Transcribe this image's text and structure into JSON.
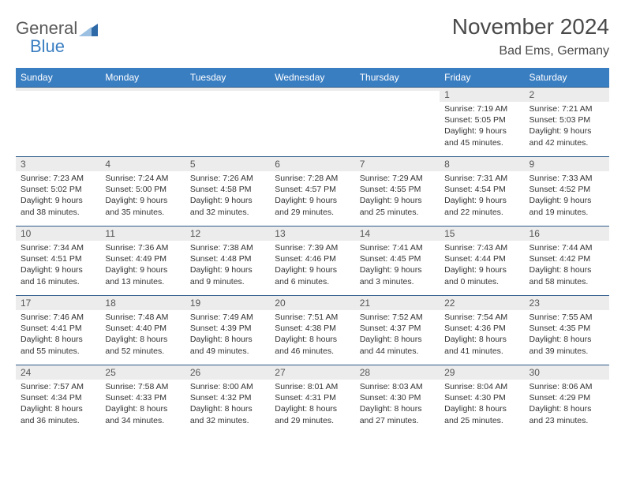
{
  "logo": {
    "word1": "General",
    "word2": "Blue",
    "tri_color": "#2f6aa8"
  },
  "header": {
    "month_title": "November 2024",
    "location": "Bad Ems, Germany"
  },
  "colors": {
    "header_bg": "#3a7ec2",
    "header_text": "#ffffff",
    "daynum_bg": "#ececec",
    "border": "#2e5b8a",
    "text": "#333333"
  },
  "day_labels": [
    "Sunday",
    "Monday",
    "Tuesday",
    "Wednesday",
    "Thursday",
    "Friday",
    "Saturday"
  ],
  "weeks": [
    [
      {
        "n": "",
        "sr": "",
        "ss": "",
        "dl": ""
      },
      {
        "n": "",
        "sr": "",
        "ss": "",
        "dl": ""
      },
      {
        "n": "",
        "sr": "",
        "ss": "",
        "dl": ""
      },
      {
        "n": "",
        "sr": "",
        "ss": "",
        "dl": ""
      },
      {
        "n": "",
        "sr": "",
        "ss": "",
        "dl": ""
      },
      {
        "n": "1",
        "sr": "Sunrise: 7:19 AM",
        "ss": "Sunset: 5:05 PM",
        "dl": "Daylight: 9 hours and 45 minutes."
      },
      {
        "n": "2",
        "sr": "Sunrise: 7:21 AM",
        "ss": "Sunset: 5:03 PM",
        "dl": "Daylight: 9 hours and 42 minutes."
      }
    ],
    [
      {
        "n": "3",
        "sr": "Sunrise: 7:23 AM",
        "ss": "Sunset: 5:02 PM",
        "dl": "Daylight: 9 hours and 38 minutes."
      },
      {
        "n": "4",
        "sr": "Sunrise: 7:24 AM",
        "ss": "Sunset: 5:00 PM",
        "dl": "Daylight: 9 hours and 35 minutes."
      },
      {
        "n": "5",
        "sr": "Sunrise: 7:26 AM",
        "ss": "Sunset: 4:58 PM",
        "dl": "Daylight: 9 hours and 32 minutes."
      },
      {
        "n": "6",
        "sr": "Sunrise: 7:28 AM",
        "ss": "Sunset: 4:57 PM",
        "dl": "Daylight: 9 hours and 29 minutes."
      },
      {
        "n": "7",
        "sr": "Sunrise: 7:29 AM",
        "ss": "Sunset: 4:55 PM",
        "dl": "Daylight: 9 hours and 25 minutes."
      },
      {
        "n": "8",
        "sr": "Sunrise: 7:31 AM",
        "ss": "Sunset: 4:54 PM",
        "dl": "Daylight: 9 hours and 22 minutes."
      },
      {
        "n": "9",
        "sr": "Sunrise: 7:33 AM",
        "ss": "Sunset: 4:52 PM",
        "dl": "Daylight: 9 hours and 19 minutes."
      }
    ],
    [
      {
        "n": "10",
        "sr": "Sunrise: 7:34 AM",
        "ss": "Sunset: 4:51 PM",
        "dl": "Daylight: 9 hours and 16 minutes."
      },
      {
        "n": "11",
        "sr": "Sunrise: 7:36 AM",
        "ss": "Sunset: 4:49 PM",
        "dl": "Daylight: 9 hours and 13 minutes."
      },
      {
        "n": "12",
        "sr": "Sunrise: 7:38 AM",
        "ss": "Sunset: 4:48 PM",
        "dl": "Daylight: 9 hours and 9 minutes."
      },
      {
        "n": "13",
        "sr": "Sunrise: 7:39 AM",
        "ss": "Sunset: 4:46 PM",
        "dl": "Daylight: 9 hours and 6 minutes."
      },
      {
        "n": "14",
        "sr": "Sunrise: 7:41 AM",
        "ss": "Sunset: 4:45 PM",
        "dl": "Daylight: 9 hours and 3 minutes."
      },
      {
        "n": "15",
        "sr": "Sunrise: 7:43 AM",
        "ss": "Sunset: 4:44 PM",
        "dl": "Daylight: 9 hours and 0 minutes."
      },
      {
        "n": "16",
        "sr": "Sunrise: 7:44 AM",
        "ss": "Sunset: 4:42 PM",
        "dl": "Daylight: 8 hours and 58 minutes."
      }
    ],
    [
      {
        "n": "17",
        "sr": "Sunrise: 7:46 AM",
        "ss": "Sunset: 4:41 PM",
        "dl": "Daylight: 8 hours and 55 minutes."
      },
      {
        "n": "18",
        "sr": "Sunrise: 7:48 AM",
        "ss": "Sunset: 4:40 PM",
        "dl": "Daylight: 8 hours and 52 minutes."
      },
      {
        "n": "19",
        "sr": "Sunrise: 7:49 AM",
        "ss": "Sunset: 4:39 PM",
        "dl": "Daylight: 8 hours and 49 minutes."
      },
      {
        "n": "20",
        "sr": "Sunrise: 7:51 AM",
        "ss": "Sunset: 4:38 PM",
        "dl": "Daylight: 8 hours and 46 minutes."
      },
      {
        "n": "21",
        "sr": "Sunrise: 7:52 AM",
        "ss": "Sunset: 4:37 PM",
        "dl": "Daylight: 8 hours and 44 minutes."
      },
      {
        "n": "22",
        "sr": "Sunrise: 7:54 AM",
        "ss": "Sunset: 4:36 PM",
        "dl": "Daylight: 8 hours and 41 minutes."
      },
      {
        "n": "23",
        "sr": "Sunrise: 7:55 AM",
        "ss": "Sunset: 4:35 PM",
        "dl": "Daylight: 8 hours and 39 minutes."
      }
    ],
    [
      {
        "n": "24",
        "sr": "Sunrise: 7:57 AM",
        "ss": "Sunset: 4:34 PM",
        "dl": "Daylight: 8 hours and 36 minutes."
      },
      {
        "n": "25",
        "sr": "Sunrise: 7:58 AM",
        "ss": "Sunset: 4:33 PM",
        "dl": "Daylight: 8 hours and 34 minutes."
      },
      {
        "n": "26",
        "sr": "Sunrise: 8:00 AM",
        "ss": "Sunset: 4:32 PM",
        "dl": "Daylight: 8 hours and 32 minutes."
      },
      {
        "n": "27",
        "sr": "Sunrise: 8:01 AM",
        "ss": "Sunset: 4:31 PM",
        "dl": "Daylight: 8 hours and 29 minutes."
      },
      {
        "n": "28",
        "sr": "Sunrise: 8:03 AM",
        "ss": "Sunset: 4:30 PM",
        "dl": "Daylight: 8 hours and 27 minutes."
      },
      {
        "n": "29",
        "sr": "Sunrise: 8:04 AM",
        "ss": "Sunset: 4:30 PM",
        "dl": "Daylight: 8 hours and 25 minutes."
      },
      {
        "n": "30",
        "sr": "Sunrise: 8:06 AM",
        "ss": "Sunset: 4:29 PM",
        "dl": "Daylight: 8 hours and 23 minutes."
      }
    ]
  ]
}
